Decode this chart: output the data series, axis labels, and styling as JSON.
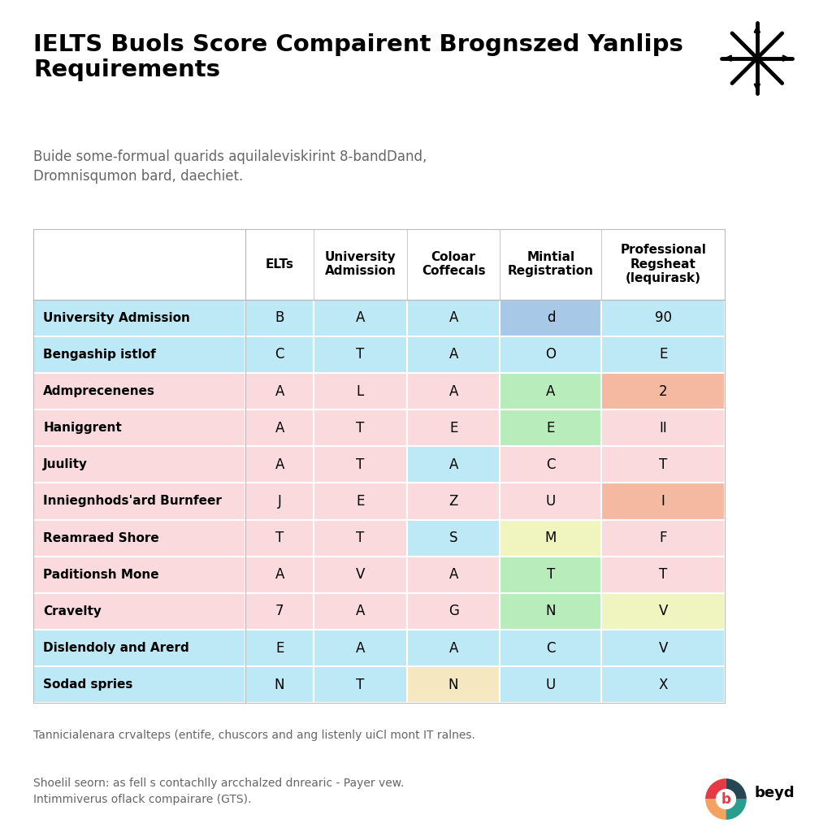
{
  "title": "IELTS Buols Score Compairent Brognszed Yanlips\nRequirements",
  "subtitle": "Buide some-formual quarids aquilaleviskirint 8-bandDand,\nDromnisqumon bard, daechiet.",
  "footer1": "Tannicialenara crvalteps (entife, chuscors and ang listenly uiCl mont IT ralnes.",
  "footer2": "Shoelil seorn: as fell s contachlly arcchalzed dnrearic - Payer vew.\nIntimmiverus oflack compairare (GTS).",
  "col_headers": [
    "ELTs",
    "University\nAdmission",
    "Coloar\nCoffecals",
    "Mintial\nRegistration",
    "Professional\nRegsheat\n(lequirask)"
  ],
  "row_headers": [
    "University Admission",
    "Bengaship istlof",
    "Admprecenenes",
    "Haniggrent",
    "Juulity",
    "Inniegnhods'ard Burnfeer",
    "Reamraed Shore",
    "Paditionsh Mone",
    "Cravelty",
    "Dislendoly and Arerd",
    "Sodad spries"
  ],
  "table_data": [
    [
      "B",
      "A",
      "A",
      "d",
      "90"
    ],
    [
      "C",
      "T",
      "A",
      "O",
      "E"
    ],
    [
      "A",
      "L",
      "A",
      "A",
      "2"
    ],
    [
      "A",
      "T",
      "E",
      "E",
      "II"
    ],
    [
      "A",
      "T",
      "A",
      "C",
      "T"
    ],
    [
      "J",
      "E",
      "Z",
      "U",
      "I"
    ],
    [
      "T",
      "T",
      "S",
      "M",
      "F"
    ],
    [
      "A",
      "V",
      "A",
      "T",
      "T"
    ],
    [
      "7",
      "A",
      "G",
      "N",
      "V"
    ],
    [
      "E",
      "A",
      "A",
      "C",
      "V"
    ],
    [
      "N",
      "T",
      "N",
      "U",
      "X"
    ]
  ],
  "cell_colors": [
    [
      "#BDE8F5",
      "#BDE8F5",
      "#BDE8F5",
      "#A8C8E8",
      "#BDE8F5"
    ],
    [
      "#BDE8F5",
      "#BDE8F5",
      "#BDE8F5",
      "#BDE8F5",
      "#BDE8F5"
    ],
    [
      "#FADADD",
      "#FADADD",
      "#FADADD",
      "#B8EDBB",
      "#F5B8A0"
    ],
    [
      "#FADADD",
      "#FADADD",
      "#FADADD",
      "#B8EDBB",
      "#FADADD"
    ],
    [
      "#FADADD",
      "#FADADD",
      "#BDE8F5",
      "#FADADD",
      "#FADADD"
    ],
    [
      "#FADADD",
      "#FADADD",
      "#FADADD",
      "#FADADD",
      "#F5B8A0"
    ],
    [
      "#FADADD",
      "#FADADD",
      "#BDE8F5",
      "#F0F5C0",
      "#FADADD"
    ],
    [
      "#FADADD",
      "#FADADD",
      "#FADADD",
      "#B8EDBB",
      "#FADADD"
    ],
    [
      "#FADADD",
      "#FADADD",
      "#FADADD",
      "#B8EDBB",
      "#F0F5C0"
    ],
    [
      "#BDE8F5",
      "#BDE8F5",
      "#BDE8F5",
      "#BDE8F5",
      "#BDE8F5"
    ],
    [
      "#BDE8F5",
      "#BDE8F5",
      "#F5E8C0",
      "#BDE8F5",
      "#BDE8F5"
    ]
  ],
  "row_bg_colors": [
    "#BDE8F5",
    "#BDE8F5",
    "#FADADD",
    "#FADADD",
    "#FADADD",
    "#FADADD",
    "#FADADD",
    "#FADADD",
    "#FADADD",
    "#BDE8F5",
    "#BDE8F5"
  ],
  "background_color": "#FFFFFF",
  "title_fontsize": 21,
  "subtitle_fontsize": 12,
  "header_fontsize": 11,
  "cell_fontsize": 12,
  "row_label_fontsize": 11
}
